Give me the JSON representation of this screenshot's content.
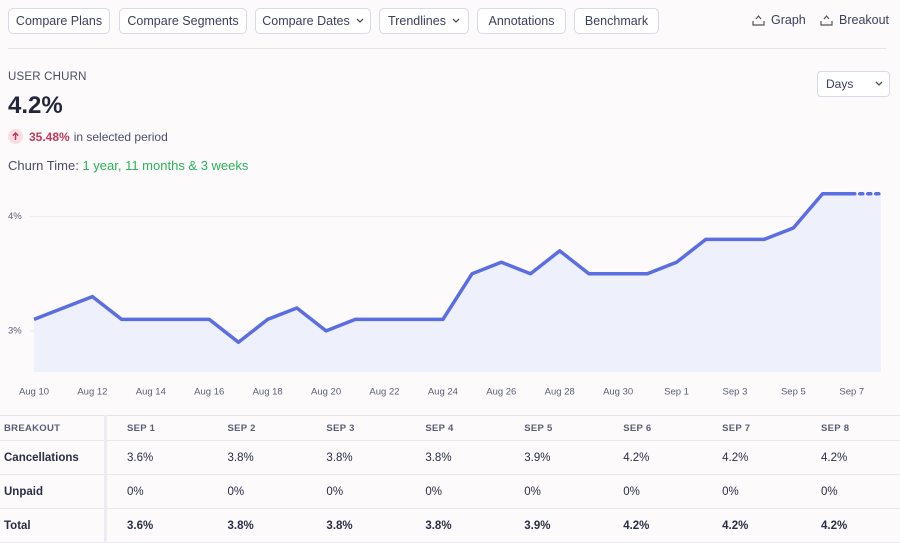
{
  "toolbar": {
    "buttons": [
      "Compare Plans",
      "Compare Segments",
      "Compare Dates",
      "Trendlines",
      "Annotations",
      "Benchmark"
    ],
    "views": [
      "Graph",
      "Breakout"
    ]
  },
  "metric": {
    "label": "USER CHURN",
    "value": "4.2%",
    "change": "35.48%",
    "change_text": "in selected period",
    "churn_time_label": "Churn Time:",
    "churn_time_value": "1 year, 11 months & 3 weeks",
    "interval": "Days"
  },
  "chart_data": {
    "type": "area",
    "categories": [
      "Aug 10",
      null,
      "Aug 12",
      null,
      "Aug 14",
      null,
      "Aug 16",
      null,
      "Aug 18",
      null,
      "Aug 20",
      null,
      "Aug 22",
      null,
      "Aug 24",
      null,
      "Aug 26",
      null,
      "Aug 28",
      null,
      "Aug 30",
      null,
      "Sep 1",
      null,
      "Sep 3",
      null,
      "Sep 5",
      null,
      "Sep 7",
      null
    ],
    "values": [
      3.1,
      3.2,
      3.3,
      3.1,
      3.1,
      3.1,
      3.1,
      2.9,
      3.1,
      3.2,
      3.0,
      3.1,
      3.1,
      3.1,
      3.1,
      3.5,
      3.6,
      3.5,
      3.7,
      3.5,
      3.5,
      3.5,
      3.6,
      3.8,
      3.8,
      3.8,
      3.9,
      4.2,
      4.2,
      4.2
    ],
    "color": "#5b6ee1",
    "ylim": [
      2.64,
      4.32
    ],
    "yticks": [
      {
        "value": 3,
        "label": "3%"
      },
      {
        "value": 4,
        "label": "4%"
      }
    ],
    "grid": true
  },
  "table": {
    "header": [
      "BREAKOUT",
      "SEP 1",
      "SEP 2",
      "SEP 3",
      "SEP 4",
      "SEP 5",
      "SEP 6",
      "SEP 7",
      "SEP 8"
    ],
    "rows": [
      [
        "Cancellations",
        "3.6%",
        "3.8%",
        "3.8%",
        "3.8%",
        "3.9%",
        "4.2%",
        "4.2%",
        "4.2%"
      ],
      [
        "Unpaid",
        "0%",
        "0%",
        "0%",
        "0%",
        "0%",
        "0%",
        "0%",
        "0%"
      ],
      [
        "Total",
        "3.6%",
        "3.8%",
        "3.8%",
        "3.8%",
        "3.9%",
        "4.2%",
        "4.2%",
        "4.2%"
      ]
    ]
  }
}
